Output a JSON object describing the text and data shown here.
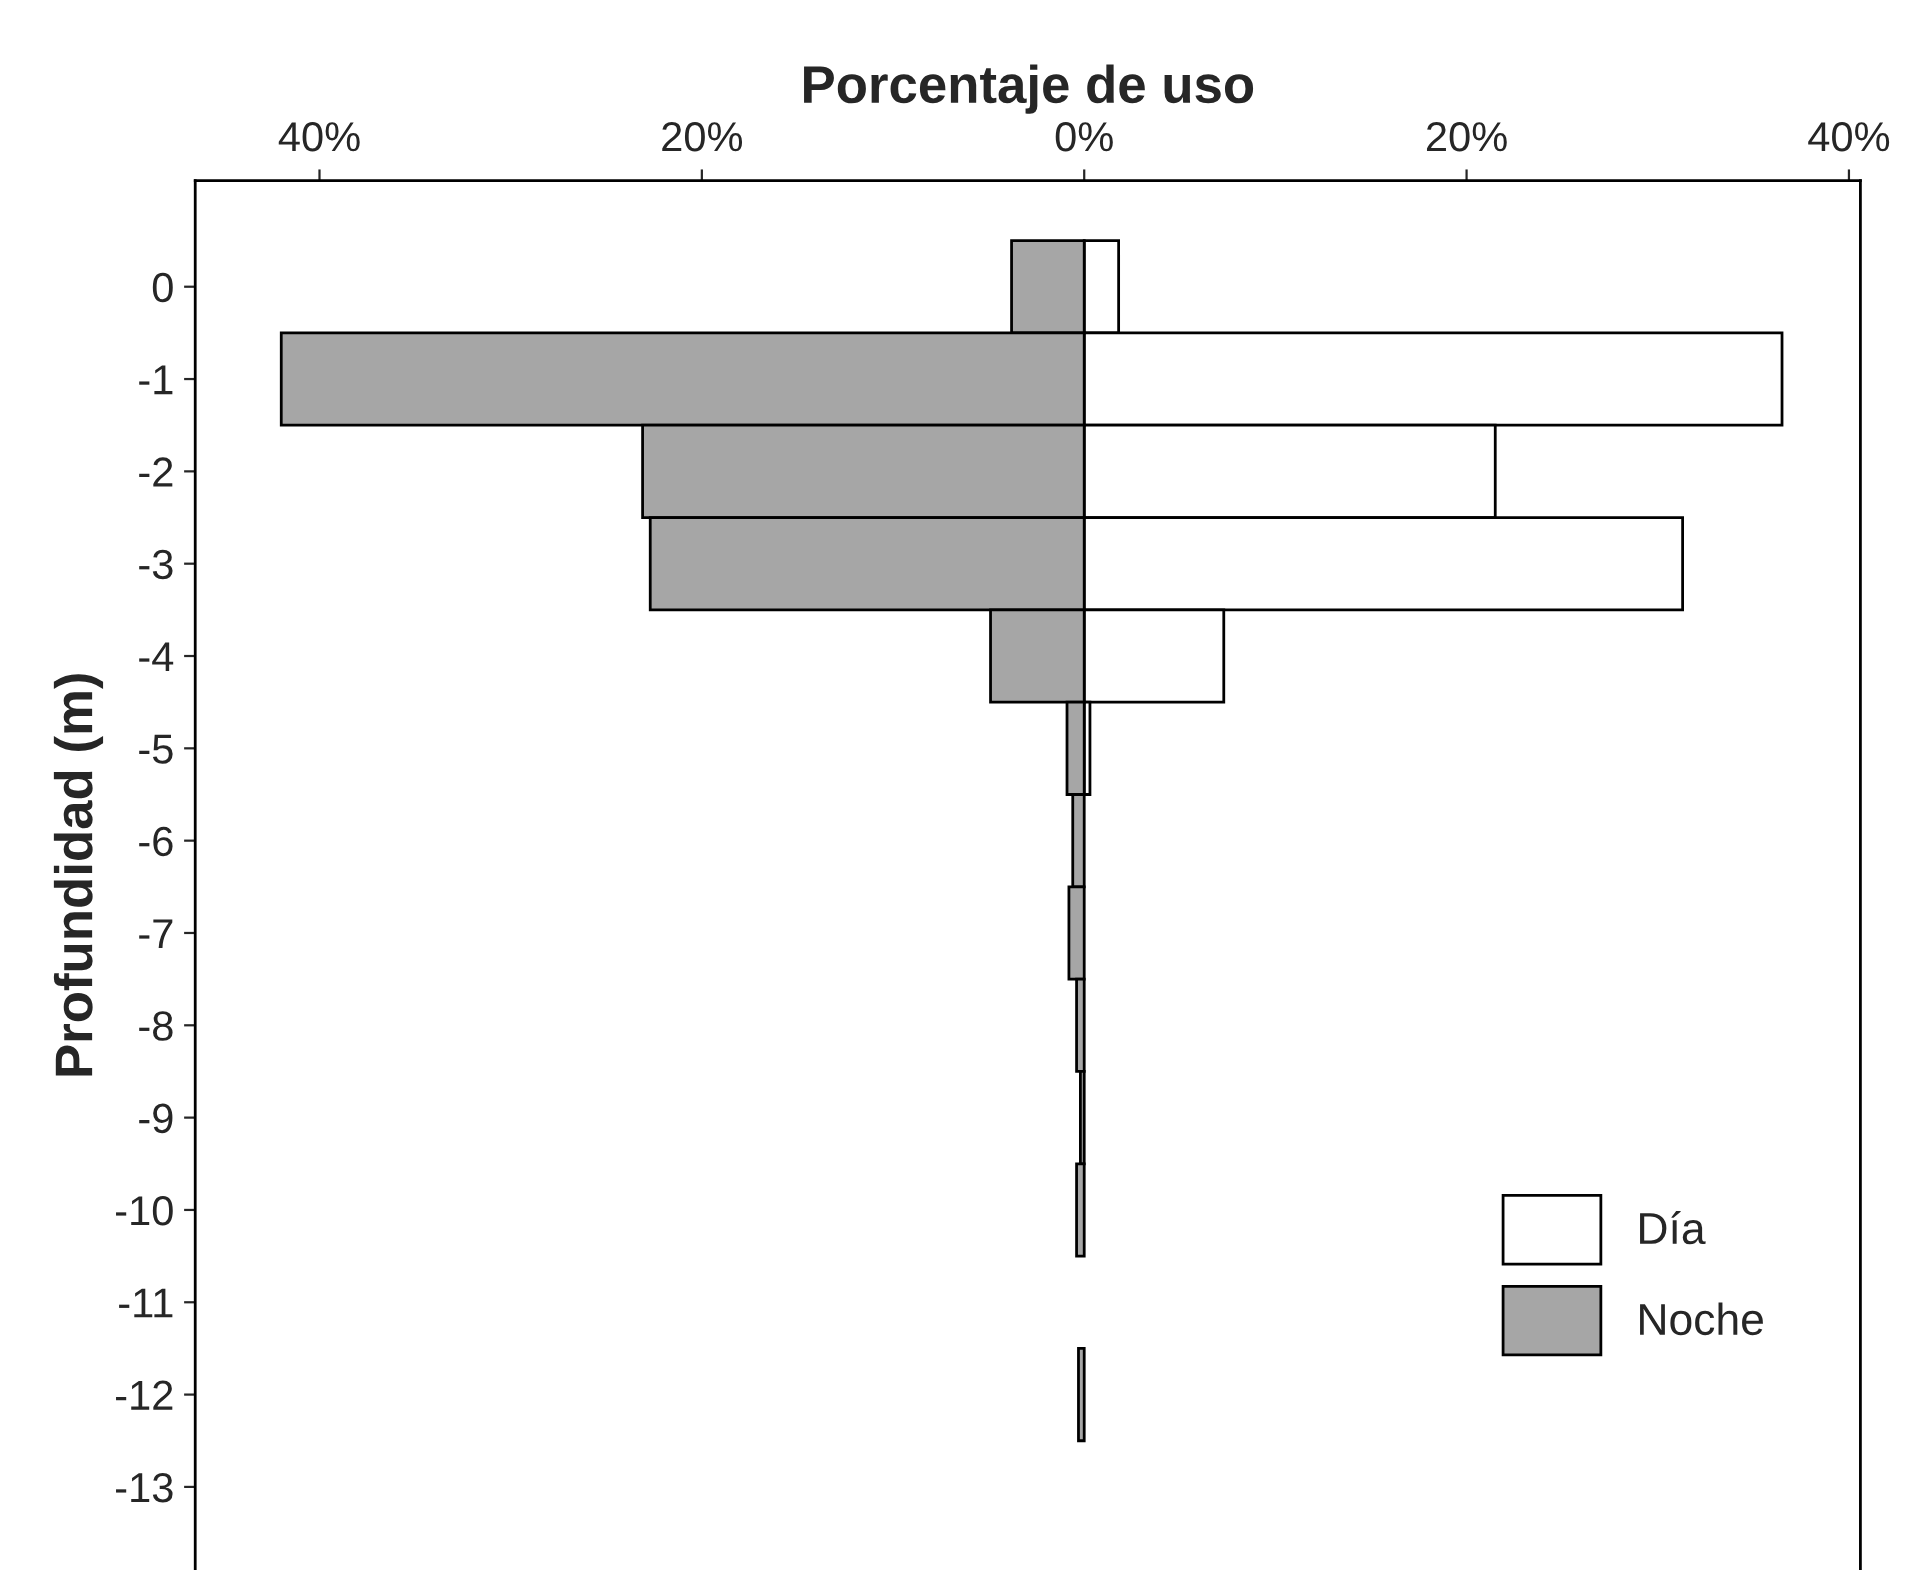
{
  "chart_data": {
    "type": "bar",
    "orientation": "horizontal",
    "title": "Porcentaje de uso",
    "ylabel": "Profundidad (m)",
    "categories": [
      "0",
      "-1",
      "-2",
      "-3",
      "-4",
      "-5",
      "-6",
      "-7",
      "-8",
      "-9",
      "-10",
      "-11",
      "-12",
      "-13"
    ],
    "series": [
      {
        "name": "Día",
        "color": "#ffffff",
        "values": [
          1.8,
          36.5,
          21.5,
          31.3,
          7.3,
          0.3,
          0,
          0,
          0,
          0,
          0,
          0,
          0,
          0
        ]
      },
      {
        "name": "Noche",
        "color": "#a6a6a6",
        "values": [
          -3.8,
          -42.0,
          -23.1,
          -22.7,
          -4.9,
          -0.9,
          -0.6,
          -0.8,
          -0.4,
          -0.2,
          -0.4,
          0,
          -0.3,
          0
        ]
      }
    ],
    "xlim": [
      -46.5,
      40.6
    ],
    "xticks": [
      {
        "value": -40,
        "label": "40%"
      },
      {
        "value": -20,
        "label": "20%"
      },
      {
        "value": 0,
        "label": "0%"
      },
      {
        "value": 20,
        "label": "20%"
      },
      {
        "value": 40,
        "label": "40%"
      }
    ],
    "grid": false,
    "legend": "bottom right"
  }
}
